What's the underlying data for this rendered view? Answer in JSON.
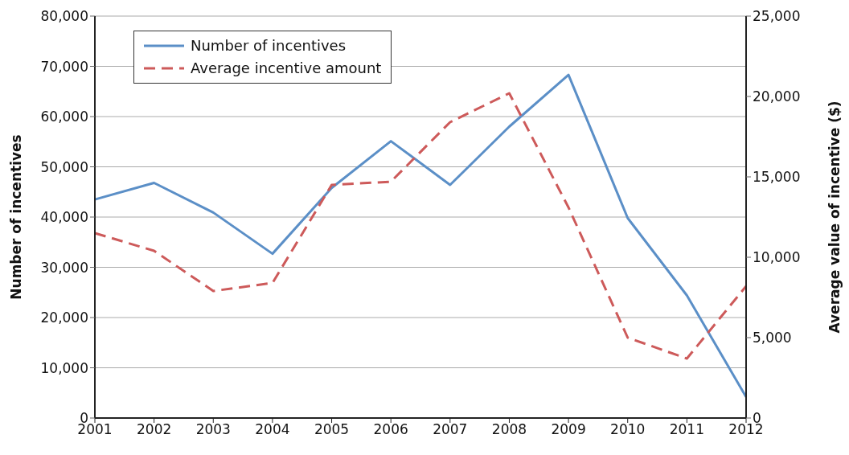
{
  "chart_data": {
    "type": "line",
    "categories": [
      "2001",
      "2002",
      "2003",
      "2004",
      "2005",
      "2006",
      "2007",
      "2008",
      "2009",
      "2010",
      "2011",
      "2012"
    ],
    "ylabel": "Number of incentives",
    "y2label": "Average value of incentive ($)",
    "series": [
      {
        "name": "Number of incentives",
        "color": "#5b8fc7",
        "line_style": "solid",
        "values": [
          43500,
          46800,
          40900,
          32700,
          45800,
          55100,
          46400,
          58000,
          68300,
          39800,
          24400,
          4200
        ]
      },
      {
        "name": "Average incentive amount",
        "color": "#cd5a5a",
        "line_style": "dashed",
        "axis": "y2",
        "values": [
          11500,
          10400,
          7900,
          8400,
          14500,
          14700,
          18400,
          20200,
          13100,
          5000,
          3700,
          8200
        ]
      }
    ],
    "ylim": [
      0,
      80000
    ],
    "yticks": [
      0,
      {
        "value": 10000,
        "label": "10,000"
      },
      {
        "value": 20000,
        "label": "20,000"
      },
      {
        "value": 30000,
        "label": "30,000"
      },
      {
        "value": 40000,
        "label": "40,000"
      },
      {
        "value": 50000,
        "label": "50,000"
      },
      {
        "value": 60000,
        "label": "60,000"
      },
      {
        "value": 70000,
        "label": "70,000"
      },
      {
        "value": 80000,
        "label": "80,000"
      }
    ],
    "y2lim": [
      0,
      25000
    ],
    "y2ticks": [
      0,
      {
        "value": 5000,
        "label": "5,000"
      },
      {
        "value": 10000,
        "label": "10,000"
      },
      {
        "value": 15000,
        "label": "15,000"
      },
      {
        "value": 20000,
        "label": "20,000"
      },
      {
        "value": 25000,
        "label": "25,000"
      }
    ],
    "grid": "y",
    "legend": "top left",
    "marker": "none"
  }
}
